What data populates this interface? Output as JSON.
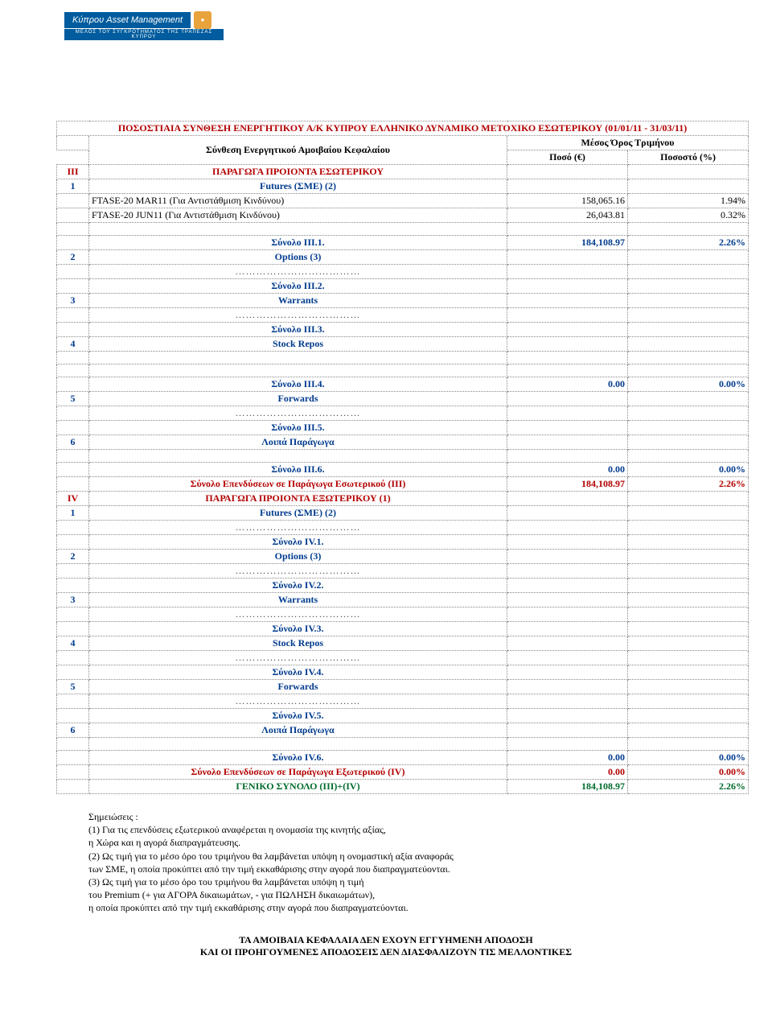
{
  "logo": {
    "main": "Κύπρου Asset Management",
    "sub": "ΜΕΛΟΣ ΤΟΥ ΣΥΓΚΡΟΤΗΜΑΤΟΣ ΤΗΣ ΤΡΑΠΕΖΑΣ ΚΥΠΡΟΥ"
  },
  "title": "ΠΟΣΟΣΤΙΑΙΑ ΣΥΝΘΕΣΗ ΕΝΕΡΓΗΤΙΚΟΥ Α/Κ ΚΥΠΡΟΥ ΕΛΛΗΝΙΚΟ ΔΥΝΑΜΙΚΟ ΜΕΤΟΧΙΚΟ ΕΣΩΤΕΡΙΚΟΥ (01/01/11 - 31/03/11)",
  "header": {
    "composition": "Σύνθεση Ενεργητικού Αμοιβαίου Κεφαλαίου",
    "group": "Μέσος Όρος Τριμήνου",
    "amount": "Ποσό (€)",
    "percent": "Ποσοστό (%)"
  },
  "sectionIII": {
    "roman": "III",
    "name": "ΠΑΡΑΓΩΓΑ ΠΡΟΙΟΝΤΑ ΕΣΩΤΕΡΙΚΟΥ",
    "items": [
      {
        "idx": "1",
        "name": "Futures (ΣΜΕ)  (2)",
        "rows": [
          {
            "label": "FTASE-20 MAR11 (Για Αντιστάθμιση Κινδύνου)",
            "amount": "158,065.16",
            "pct": "1.94%"
          },
          {
            "label": "FTASE-20 JUN11 (Για Αντιστάθμιση Κινδύνου)",
            "amount": "26,043.81",
            "pct": "0.32%"
          }
        ],
        "subtotal": {
          "label": "Σύνολο III.1.",
          "amount": "184,108.97",
          "pct": "2.26%"
        }
      },
      {
        "idx": "2",
        "name": "Options  (3)",
        "subtotal": {
          "label": "Σύνολο III.2.",
          "amount": "",
          "pct": ""
        }
      },
      {
        "idx": "3",
        "name": "Warrants",
        "subtotal": {
          "label": "Σύνολο III.3.",
          "amount": "",
          "pct": ""
        }
      },
      {
        "idx": "4",
        "name": "Stock Repos",
        "subtotal": {
          "label": "Σύνολο III.4.",
          "amount": "0.00",
          "pct": "0.00%"
        }
      },
      {
        "idx": "5",
        "name": "Forwards",
        "subtotal": {
          "label": "Σύνολο III.5.",
          "amount": "",
          "pct": ""
        }
      },
      {
        "idx": "6",
        "name": "Λοιπά Παράγωγα",
        "subtotal": {
          "label": "Σύνολο III.6.",
          "amount": "0.00",
          "pct": "0.00%"
        }
      }
    ],
    "total": {
      "label": "Σύνολο Επενδύσεων σε Παράγωγα Εσωτερικού (III)",
      "amount": "184,108.97",
      "pct": "2.26%"
    }
  },
  "sectionIV": {
    "roman": "IV",
    "name": "ΠΑΡΑΓΩΓΑ ΠΡΟΙΟΝΤΑ ΕΞΩΤΕΡΙΚΟΥ (1)",
    "items": [
      {
        "idx": "1",
        "name": "Futures (ΣΜΕ)  (2)",
        "subtotal": {
          "label": "Σύνολο IV.1.",
          "amount": "",
          "pct": ""
        }
      },
      {
        "idx": "2",
        "name": "Options  (3)",
        "subtotal": {
          "label": "Σύνολο IV.2.",
          "amount": "",
          "pct": ""
        }
      },
      {
        "idx": "3",
        "name": "Warrants",
        "subtotal": {
          "label": "Σύνολο IV.3.",
          "amount": "",
          "pct": ""
        }
      },
      {
        "idx": "4",
        "name": "Stock Repos",
        "subtotal": {
          "label": "Σύνολο IV.4.",
          "amount": "",
          "pct": ""
        }
      },
      {
        "idx": "5",
        "name": "Forwards",
        "subtotal": {
          "label": "Σύνολο IV.5.",
          "amount": "",
          "pct": ""
        }
      },
      {
        "idx": "6",
        "name": "Λοιπά Παράγωγα",
        "subtotal": {
          "label": "Σύνολο IV.6.",
          "amount": "0.00",
          "pct": "0.00%"
        }
      }
    ],
    "total": {
      "label": "Σύνολο Επενδύσεων σε Παράγωγα Εξωτερικού (IV)",
      "amount": "0.00",
      "pct": "0.00%"
    }
  },
  "grandTotal": {
    "label": "ΓΕΝΙΚΟ ΣΥΝΟΛΟ (III)+(IV)",
    "amount": "184,108.97",
    "pct": "2.26%"
  },
  "dots": "………………………………",
  "notes": {
    "head": "Σημειώσεις :",
    "lines": [
      "(1) Για τις επενδύσεις εξωτερικού αναφέρεται η ονομασία της κινητής αξίας,",
      "η Χώρα και η αγορά διαπραγμάτευσης.",
      "(2) Ως τιμή για το μέσο όρο του τριμήνου θα λαμβάνεται υπόψη η ονομαστική αξία αναφοράς",
      "των ΣΜΕ, η οποία προκύπτει από την τιμή εκκαθάρισης στην αγορά που διαπραγματεύονται.",
      "(3) Ως τιμή για το μέσο όρο του τριμήνου θα λαμβάνεται υπόψη η τιμή",
      "του Premium (+ για ΑΓΟΡΑ δικαιωμάτων, - για ΠΩΛΗΣΗ δικαιωμάτων),",
      "η οποία προκύπτει από την τιμή εκκαθάρισης στην αγορά που διαπραγματεύονται."
    ]
  },
  "footer": {
    "l1": "ΤΑ ΑΜΟΙΒΑΙΑ ΚΕΦΑΛΑΙΑ ΔΕΝ ΕΧΟΥΝ ΕΓΓΥΗΜΕΝΗ ΑΠΟΔΟΣΗ",
    "l2": "ΚΑΙ ΟΙ ΠΡΟΗΓΟΥΜΕΝΕΣ ΑΠΟΔΟΣΕΙΣ ΔΕΝ ΔΙΑΣΦΑΛΙΖΟΥΝ ΤΙΣ ΜΕΛΛΟΝΤΙΚΕΣ"
  },
  "colors": {
    "brandBlue": "#005c9e",
    "darkRed": "#b30000",
    "linkBlue": "#003b8e",
    "green": "#006b2d"
  }
}
